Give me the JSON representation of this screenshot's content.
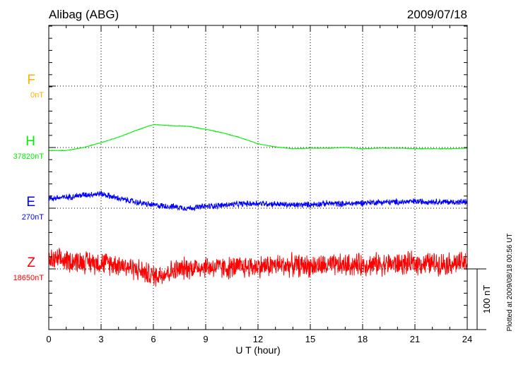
{
  "chart_data": {
    "type": "line",
    "title": "Alibag (ABG)",
    "date": "2009/07/18",
    "xlabel": "U T (hour)",
    "xlim": [
      0,
      24
    ],
    "xticks": [
      "0",
      "3",
      "6",
      "9",
      "12",
      "15",
      "18",
      "21",
      "24"
    ],
    "scale_label": "100 nT",
    "plotted_note": "Plotted at 2009/08/18 00:56 UT",
    "series": [
      {
        "name": "F",
        "baseline_label": "0nT",
        "color": "#ffb000",
        "hours": [],
        "values_nT": [],
        "noise_nT": 0
      },
      {
        "name": "H",
        "baseline_label": "37820nT",
        "color": "#00ee00",
        "hours": [
          0,
          1,
          2,
          3,
          4,
          5,
          6,
          7,
          8,
          9,
          10,
          11,
          12,
          13,
          14,
          15,
          16,
          17,
          18,
          19,
          20,
          21,
          22,
          23,
          24
        ],
        "values_nT": [
          -5,
          -5,
          0,
          8,
          17,
          28,
          38,
          36,
          35,
          30,
          24,
          16,
          6,
          1,
          -2,
          -1,
          -1,
          0,
          -2,
          -1,
          -1,
          -2,
          -2,
          -2,
          -1
        ],
        "noise_nT": 0.6
      },
      {
        "name": "E",
        "baseline_label": "270nT",
        "color": "#0000ff",
        "hours": [
          0,
          1,
          2,
          3,
          4,
          5,
          6,
          7,
          8,
          9,
          10,
          11,
          12,
          13,
          14,
          15,
          16,
          17,
          18,
          19,
          20,
          21,
          22,
          23,
          24
        ],
        "values_nT": [
          16,
          18,
          22,
          24,
          16,
          10,
          5,
          3,
          0,
          3,
          5,
          7,
          8,
          7,
          5,
          6,
          8,
          7,
          9,
          10,
          10,
          11,
          11,
          10,
          10
        ],
        "noise_nT": 6
      },
      {
        "name": "Z",
        "baseline_label": "18650nT",
        "color": "#ff0000",
        "hours": [
          0,
          1,
          2,
          3,
          4,
          5,
          6,
          7,
          8,
          9,
          10,
          11,
          12,
          13,
          14,
          15,
          16,
          17,
          18,
          19,
          20,
          21,
          22,
          23,
          24
        ],
        "values_nT": [
          14,
          14,
          12,
          10,
          8,
          0,
          -12,
          -4,
          2,
          4,
          1,
          3,
          4,
          6,
          6,
          5,
          5,
          6,
          7,
          8,
          8,
          9,
          9,
          9,
          10
        ],
        "noise_nT": 22
      }
    ]
  }
}
